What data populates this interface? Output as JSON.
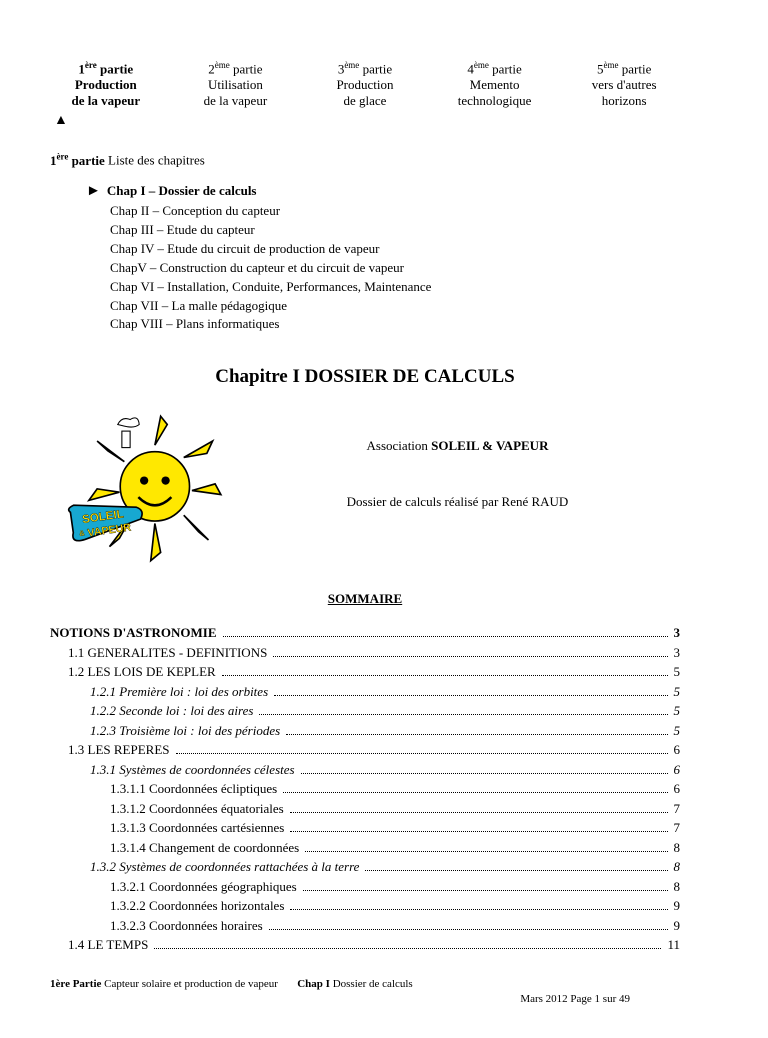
{
  "nav": [
    {
      "line1_pre": "1",
      "sup": "ère",
      "line1_post": " partie",
      "line2": "Production",
      "line3": "de la vapeur",
      "active": true
    },
    {
      "line1_pre": "2",
      "sup": "ème",
      "line1_post": " partie",
      "line2": "Utilisation",
      "line3": "de la vapeur",
      "active": false
    },
    {
      "line1_pre": "3",
      "sup": "ème",
      "line1_post": " partie",
      "line2": "Production",
      "line3": "de glace",
      "active": false
    },
    {
      "line1_pre": "4",
      "sup": "ème",
      "line1_post": " partie",
      "line2": "Memento",
      "line3": "technologique",
      "active": false
    },
    {
      "line1_pre": "5",
      "sup": "ème",
      "line1_post": " partie",
      "line2": "vers d'autres",
      "line3": "horizons",
      "active": false
    }
  ],
  "section_label_bold": "1",
  "section_label_sup": "ère",
  "section_label_post": " partie",
  "section_label_rest": "   Liste des chapitres",
  "chapters": [
    {
      "text": "Chap I – Dossier de calculs",
      "bold": true,
      "bullet": true
    },
    {
      "text": "Chap II – Conception du capteur"
    },
    {
      "text": "Chap III – Etude du capteur"
    },
    {
      "text": "Chap IV – Etude du circuit de production de vapeur"
    },
    {
      "text": "ChapV – Construction du capteur et du circuit de vapeur"
    },
    {
      "text": "Chap VI – Installation, Conduite, Performances, Maintenance"
    },
    {
      "text": "Chap VII – La malle pédagogique"
    },
    {
      "text": "Chap VIII – Plans informatiques"
    }
  ],
  "chapter_title": "Chapitre I   DOSSIER DE CALCULS",
  "association_prefix": "Association  ",
  "association_name": "SOLEIL & VAPEUR",
  "credit": "Dossier de calculs réalisé par René RAUD",
  "sommaire_label": "SOMMAIRE",
  "toc": [
    {
      "label": "NOTIONS D'ASTRONOMIE",
      "page": "3",
      "bold": true,
      "indent": 0
    },
    {
      "label": "1.1   GENERALITES - DEFINITIONS",
      "page": "3",
      "indent": 1
    },
    {
      "label": "1.2   LES LOIS DE KEPLER",
      "page": "5",
      "indent": 1
    },
    {
      "label": "1.2.1    Première loi : loi des orbites",
      "page": "5",
      "italic": true,
      "indent": 2
    },
    {
      "label": "1.2.2    Seconde loi : loi des aires",
      "page": "5",
      "italic": true,
      "indent": 2
    },
    {
      "label": "1.2.3    Troisième loi : loi des périodes",
      "page": "5",
      "italic": true,
      "indent": 2
    },
    {
      "label": "1.3   LES REPERES",
      "page": "6",
      "indent": 1
    },
    {
      "label": "1.3.1    Systèmes de coordonnées célestes",
      "page": "6",
      "italic": true,
      "indent": 2
    },
    {
      "label": "1.3.1.1 Coordonnées écliptiques",
      "page": "6",
      "indent": 3
    },
    {
      "label": "1.3.1.2 Coordonnées équatoriales",
      "page": "7",
      "indent": 3
    },
    {
      "label": "1.3.1.3 Coordonnées cartésiennes",
      "page": "7",
      "indent": 3
    },
    {
      "label": "1.3.1.4 Changement de coordonnées",
      "page": "8",
      "indent": 3
    },
    {
      "label": "1.3.2    Systèmes de coordonnées rattachées à la terre",
      "page": "8",
      "italic": true,
      "indent": 2
    },
    {
      "label": "1.3.2.1 Coordonnées géographiques",
      "page": "8",
      "indent": 3
    },
    {
      "label": "1.3.2.2 Coordonnées horizontales",
      "page": "9",
      "indent": 3
    },
    {
      "label": "1.3.2.3 Coordonnées horaires",
      "page": "9",
      "indent": 3
    },
    {
      "label": "1.4   LE TEMPS",
      "page": "11",
      "indent": 1
    }
  ],
  "footer": {
    "part_bold": "1ère Partie",
    "part_rest": " Capteur solaire et production de vapeur",
    "chap_bold": "Chap I",
    "chap_rest": "  Dossier de calculs",
    "date_page": "Mars 2012   Page  1 sur  49"
  },
  "logo": {
    "sun_color": "#ffe800",
    "sun_outline": "#000",
    "face_color": "#000",
    "banner_color": "#17a8d1",
    "banner_text1": "SOLEIL",
    "banner_text2": "VAPEUR",
    "banner_sep": "&",
    "banner_text_color": "#ffdd00"
  }
}
